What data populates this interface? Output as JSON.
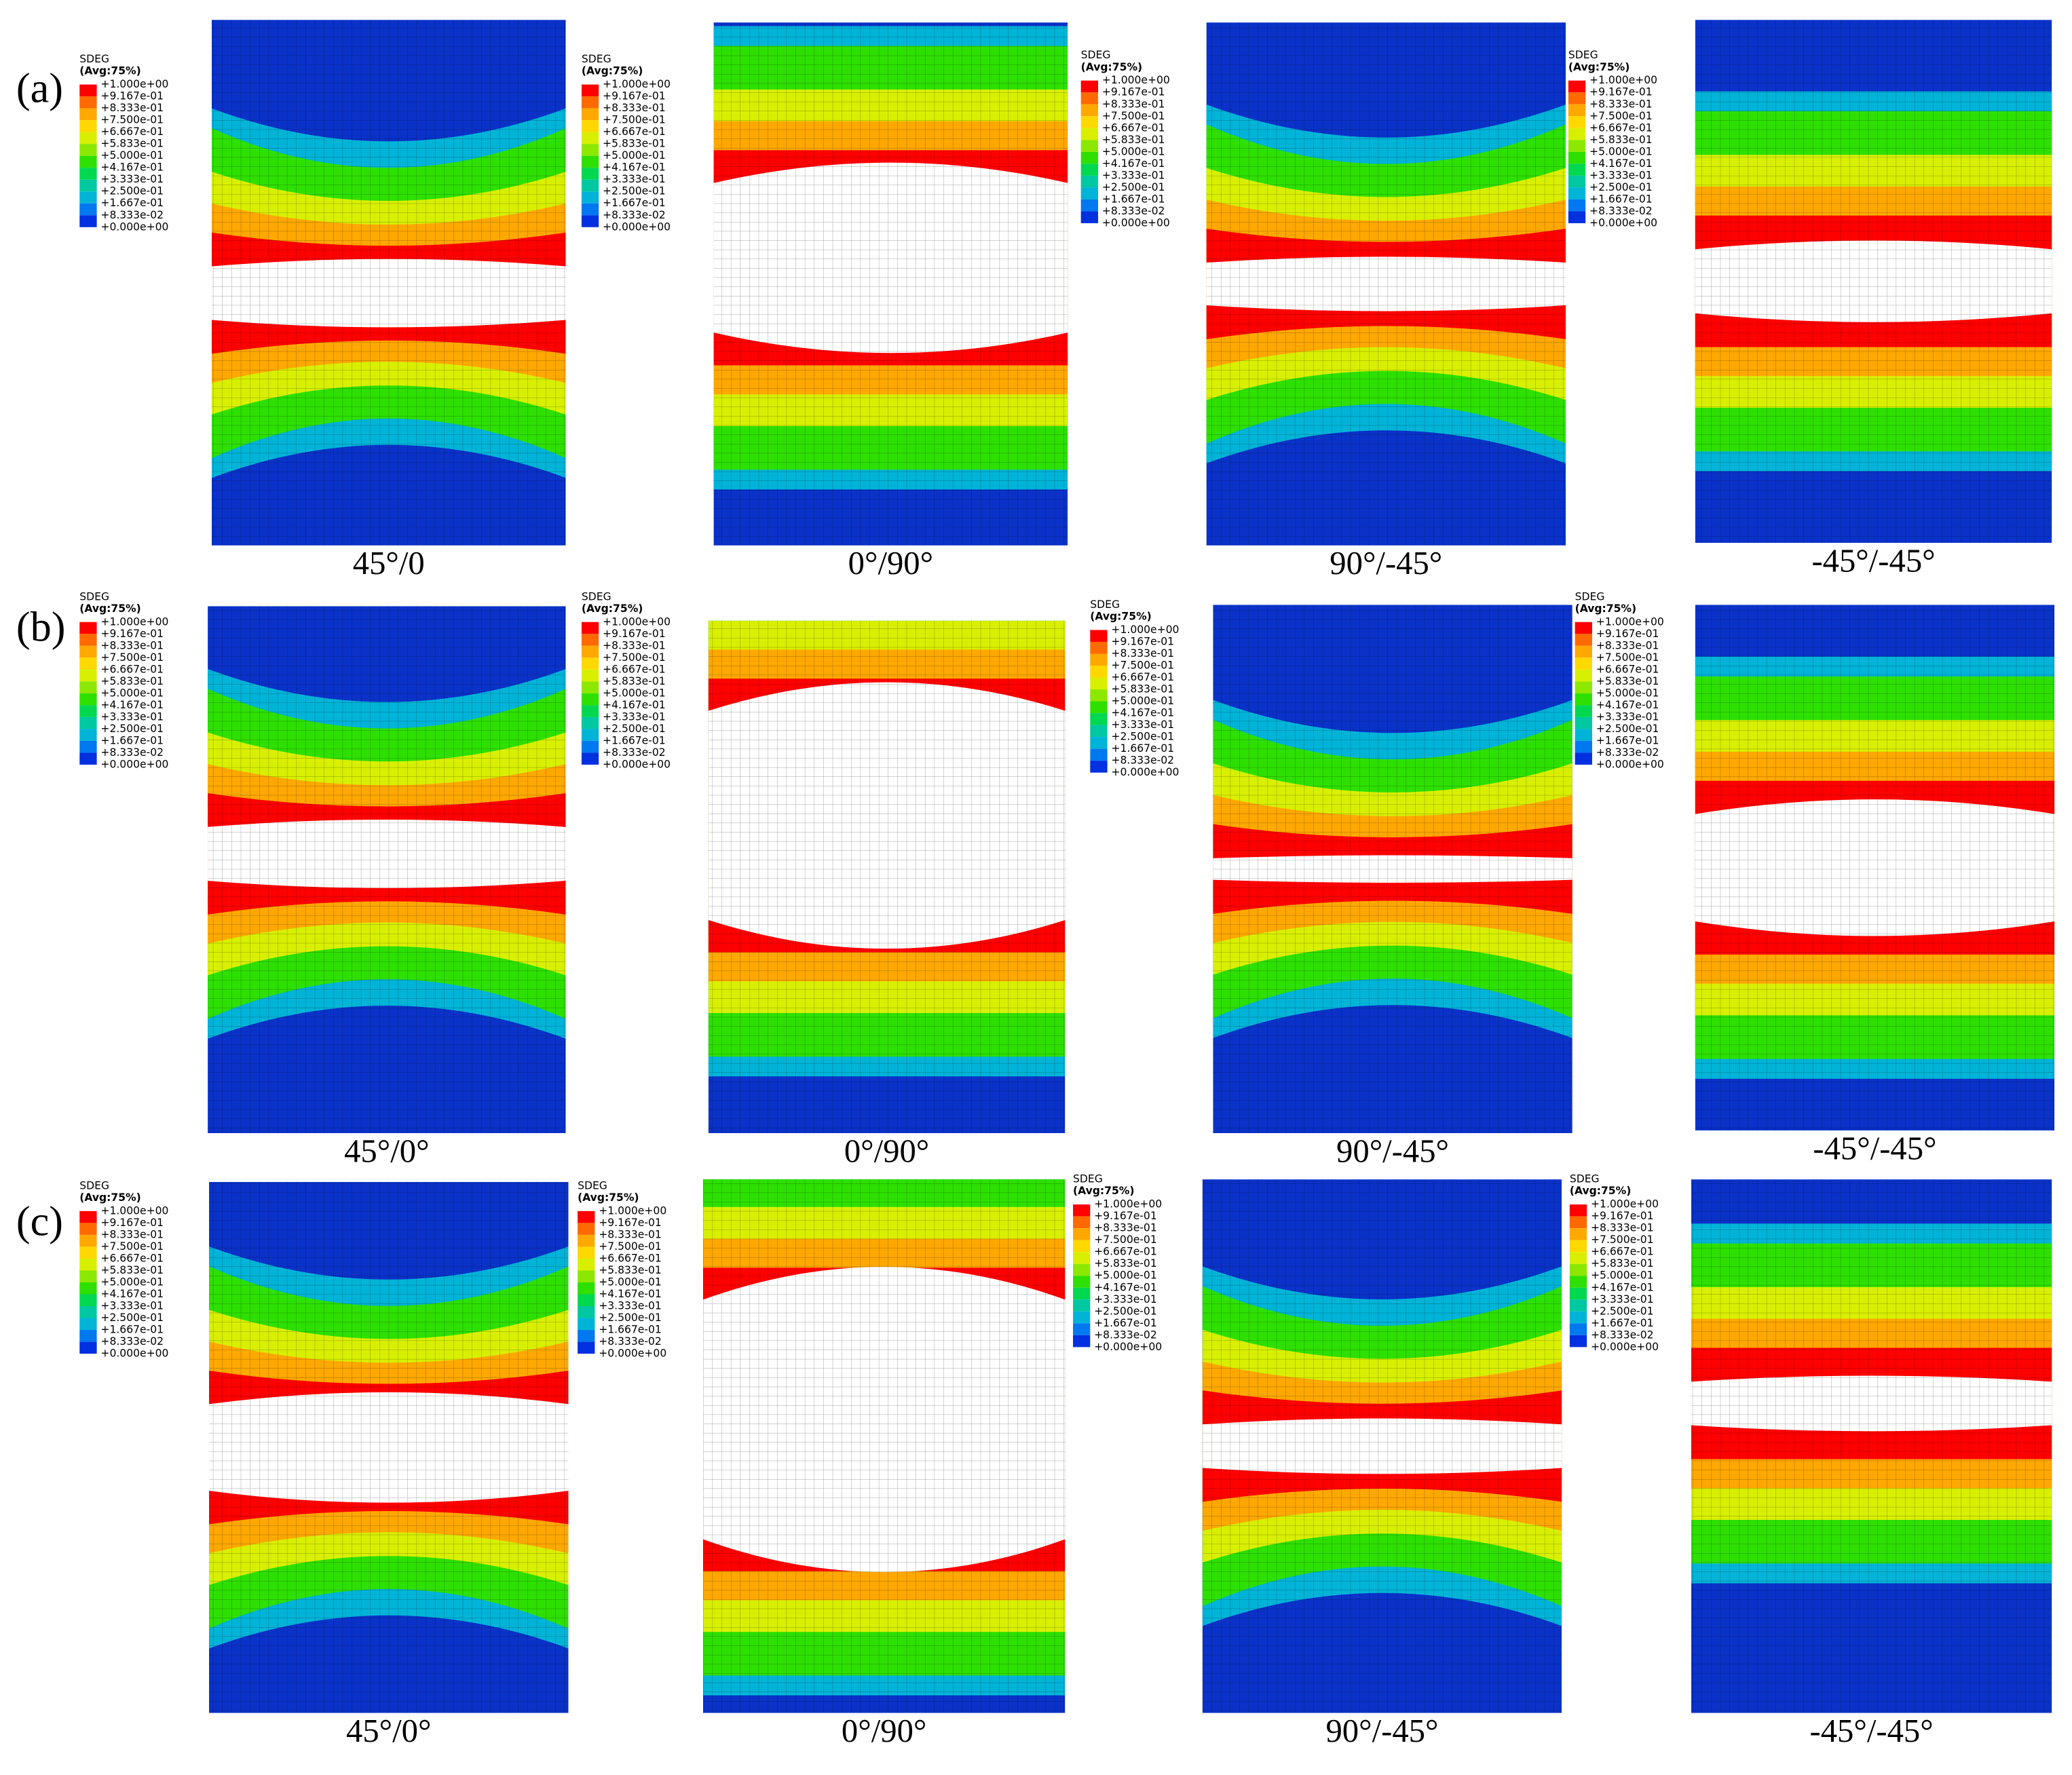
{
  "rows": [
    {
      "label": "(a)",
      "panels": [
        {
          "caption": "45°/0"
        },
        {
          "caption": "0°/90°"
        },
        {
          "caption": "90°/-45°"
        },
        {
          "caption": "-45°/-45°"
        }
      ]
    },
    {
      "label": "(b)",
      "panels": [
        {
          "caption": "45°/0°"
        },
        {
          "caption": "0°/90°"
        },
        {
          "caption": "90°/-45°"
        },
        {
          "caption": "-45°/-45°"
        }
      ]
    },
    {
      "label": "(c)",
      "panels": [
        {
          "caption": "45°/0°"
        },
        {
          "caption": "0°/90°"
        },
        {
          "caption": "90°/-45°"
        },
        {
          "caption": "-45°/-45°"
        }
      ]
    }
  ],
  "legend": {
    "title": "SDEG",
    "subtitle": "(Avg:75%)",
    "labels": [
      "+1.000e+00",
      "+9.167e-01",
      "+8.333e-01",
      "+7.500e-01",
      "+6.667e-01",
      "+5.833e-01",
      "+5.000e-01",
      "+4.167e-01",
      "+3.333e-01",
      "+2.500e-01",
      "+1.667e-01",
      "+8.333e-02",
      "+0.000e+00"
    ],
    "colors": [
      "#ff0000",
      "#ff6a00",
      "#ffa800",
      "#ffd800",
      "#d8f000",
      "#8ce800",
      "#2ee000",
      "#00d850",
      "#00c8a0",
      "#00b4d8",
      "#0078f0",
      "#0030e0"
    ]
  }
}
